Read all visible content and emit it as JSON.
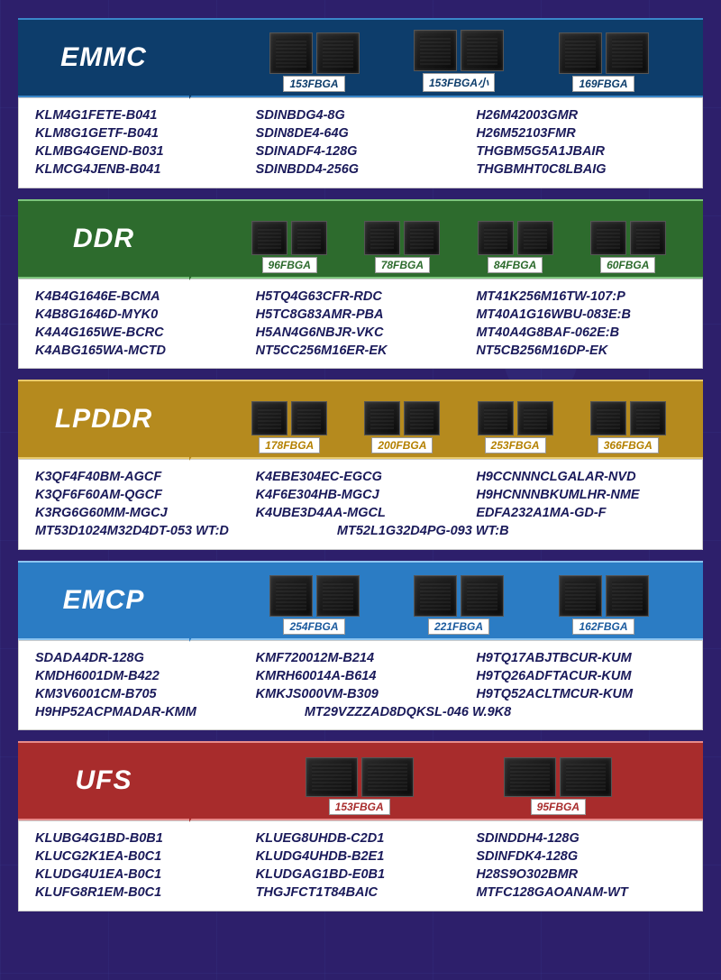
{
  "page": {
    "bg": "#2d1f6b"
  },
  "sections": [
    {
      "key": "emmc",
      "title": "EMMC",
      "color": "#0d3d6b",
      "border": "#3a86c8",
      "label_color": "#0d3d6b",
      "packages": [
        "153FBGA",
        "153FBGA小",
        "169FBGA"
      ],
      "chip_variant": "pair",
      "parts_cols": 3,
      "parts": [
        "KLM4G1FETE-B041",
        "SDINBDG4-8G",
        "H26M42003GMR",
        "KLM8G1GETF-B041",
        "SDIN8DE4-64G",
        "H26M52103FMR",
        "KLMBG4GEND-B031",
        "SDINADF4-128G",
        "THGBM5G5A1JBAIR",
        "KLMCG4JENB-B041",
        "SDINBDD4-256G",
        "THGBMHT0C8LBAIG"
      ]
    },
    {
      "key": "ddr",
      "title": "DDR",
      "color": "#2d6b2d",
      "border": "#7cc47c",
      "label_color": "#2d6b2d",
      "packages": [
        "96FBGA",
        "78FBGA",
        "84FBGA",
        "60FBGA"
      ],
      "chip_variant": "pair",
      "parts_cols": 3,
      "parts": [
        "K4B4G1646E-BCMA",
        "H5TQ4G63CFR-RDC",
        "MT41K256M16TW-107:P",
        "K4B8G1646D-MYK0",
        "H5TC8G83AMR-PBA",
        "MT40A1G16WBU-083E:B",
        "K4A4G165WE-BCRC",
        "H5AN4G6NBJR-VKC",
        "MT40A4G8BAF-062E:B",
        "K4ABG165WA-MCTD",
        "NT5CC256M16ER-EK",
        "NT5CB256M16DP-EK"
      ]
    },
    {
      "key": "lpddr",
      "title": "LPDDR",
      "color": "#b58a1e",
      "border": "#e8c96a",
      "label_color": "#b48000",
      "packages": [
        "178FBGA",
        "200FBGA",
        "253FBGA",
        "366FBGA"
      ],
      "chip_variant": "pair",
      "parts_cols": 3,
      "parts": [
        "K3QF4F40BM-AGCF",
        "K4EBE304EC-EGCG",
        "H9CCNNNCLGALAR-NVD",
        "K3QF6F60AM-QGCF",
        "K4F6E304HB-MGCJ",
        "H9HCNNNBKUMLHR-NME",
        "K3RG6G60MM-MGCJ",
        "K4UBE3D4AA-MGCL",
        "EDFA232A1MA-GD-F"
      ],
      "parts_wide": [
        "MT53D1024M32D4DT-053 WT:D",
        "MT52L1G32D4PG-093 WT:B"
      ]
    },
    {
      "key": "emcp",
      "title": "EMCP",
      "color": "#2b7cc4",
      "border": "#8cc4f0",
      "label_color": "#1a5a9e",
      "packages": [
        "254FBGA",
        "221FBGA",
        "162FBGA"
      ],
      "chip_variant": "pair",
      "parts_cols": 3,
      "parts": [
        "SDADA4DR-128G",
        "KMF720012M-B214",
        "H9TQ17ABJTBCUR-KUM",
        "KMDH6001DM-B422",
        "KMRH60014A-B614",
        "H9TQ26ADFTACUR-KUM",
        "KM3V6001CM-B705",
        "KMKJS000VM-B309",
        "H9TQ52ACLTMCUR-KUM"
      ],
      "parts_wide": [
        "H9HP52ACPMADAR-KMM",
        "MT29VZZZAD8DQKSL-046 W.9K8"
      ]
    },
    {
      "key": "ufs",
      "title": "UFS",
      "color": "#a82c2c",
      "border": "#e88a8a",
      "label_color": "#a82c2c",
      "packages": [
        "153FBGA",
        "95FBGA"
      ],
      "chip_variant": "pair-wide",
      "parts_cols": 3,
      "parts": [
        "KLUBG4G1BD-B0B1",
        "KLUEG8UHDB-C2D1",
        "SDINDDH4-128G",
        "KLUCG2K1EA-B0C1",
        "KLUDG4UHDB-B2E1",
        "SDINFDK4-128G",
        "KLUDG4U1EA-B0C1",
        "KLUDGAG1BD-E0B1",
        "H28S9O302BMR",
        "KLUFG8R1EM-B0C1",
        "THGJFCT1T84BAIC",
        "MTFC128GAOANAM-WT"
      ]
    }
  ]
}
